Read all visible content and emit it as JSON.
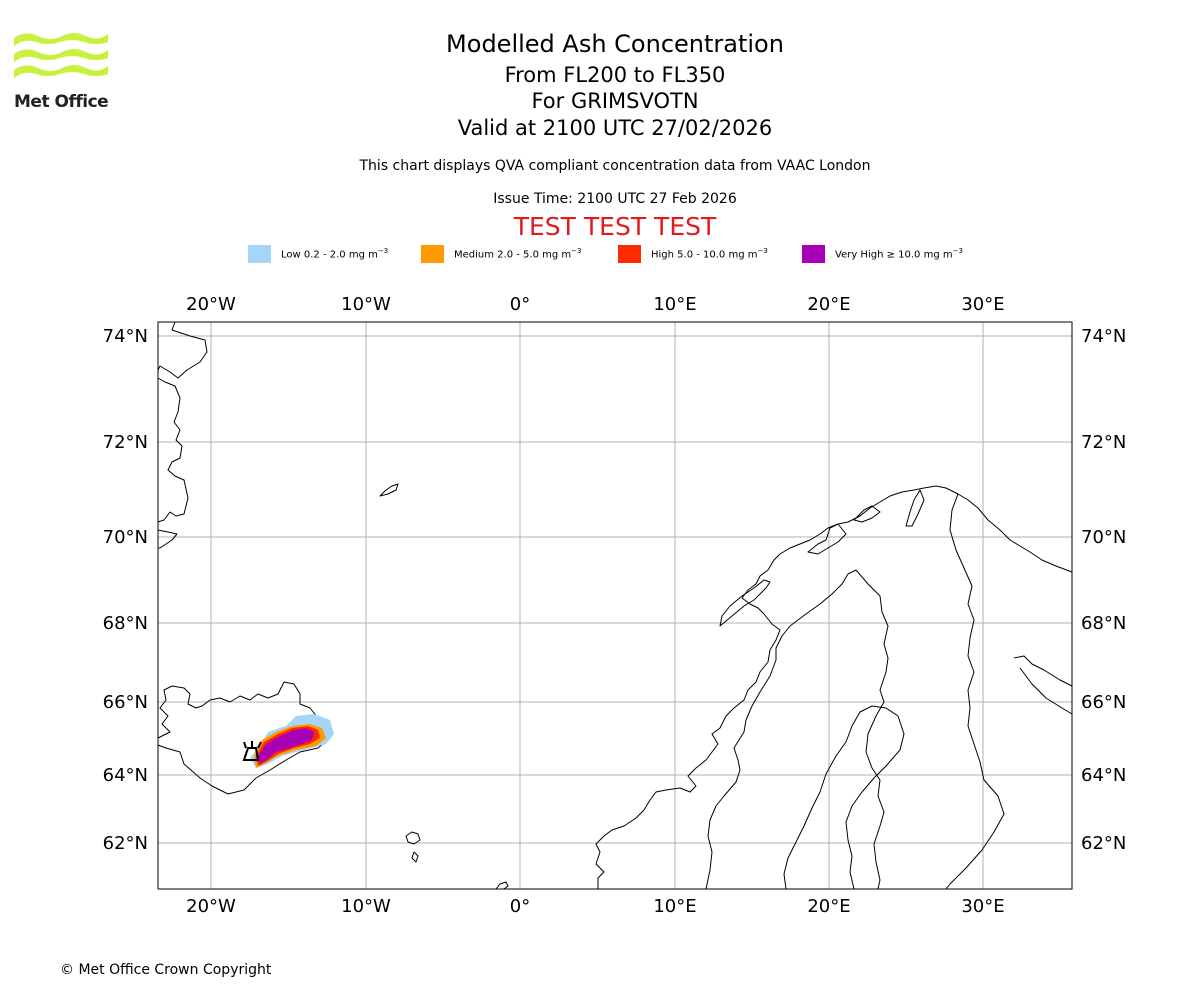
{
  "logo": {
    "text": "Met Office"
  },
  "title": {
    "main": "Modelled Ash Concentration",
    "levels": "From FL200 to FL350",
    "volcano": "For GRIMSVOTN",
    "valid": "Valid at 2100 UTC 27/02/2026"
  },
  "subtitle": {
    "compliance": "This chart displays QVA compliant concentration data from VAAC London",
    "issue": "Issue Time: 2100 UTC 27 Feb 2026",
    "test_banner": "TEST TEST TEST"
  },
  "legend": [
    {
      "label": "Low 0.2 - 2.0 mg m",
      "color": "#a6d5fa"
    },
    {
      "label": "Medium 2.0 - 5.0 mg m",
      "color": "#ff9a00"
    },
    {
      "label": "High 5.0 - 10.0 mg m",
      "color": "#ff2a00"
    },
    {
      "label": "Very High ≥ 10.0 mg m",
      "color": "#a800b5"
    }
  ],
  "legend_unit_exponent": "−3",
  "map": {
    "lon_labels": [
      "20°W",
      "10°W",
      "0°",
      "10°E",
      "20°E",
      "30°E"
    ],
    "lat_labels": [
      "74°N",
      "72°N",
      "70°N",
      "68°N",
      "66°N",
      "64°N",
      "62°N"
    ],
    "volcano_marker": "volcano-symbol"
  },
  "footer": {
    "copyright": "© Met Office Crown Copyright"
  }
}
